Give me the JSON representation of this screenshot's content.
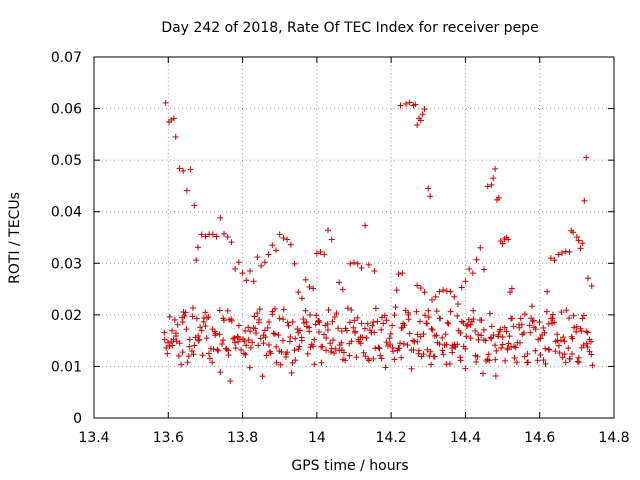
{
  "chart_data": {
    "type": "scatter",
    "title": "Day 242 of 2018, Rate Of TEC Index for receiver pepe",
    "xlabel": "GPS time / hours",
    "ylabel": "ROTI / TECUs",
    "xlim": [
      13.4,
      14.8
    ],
    "ylim": [
      0,
      0.07
    ],
    "xticks": [
      13.4,
      13.6,
      13.8,
      14.0,
      14.2,
      14.4,
      14.6,
      14.8
    ],
    "xtick_labels": [
      "13.4",
      "13.6",
      "13.8",
      "14",
      "14.2",
      "14.4",
      "14.6",
      "14.8"
    ],
    "yticks": [
      0,
      0.01,
      0.02,
      0.03,
      0.04,
      0.05,
      0.06,
      0.07
    ],
    "ytick_labels": [
      "0",
      "0.01",
      "0.02",
      "0.03",
      "0.04",
      "0.05",
      "0.06",
      "0.07"
    ],
    "grid": true,
    "marker": "+",
    "marker_color": "#cc0000",
    "series": [
      {
        "name": "ROTI",
        "points": [
          [
            13.593,
            0.0611
          ],
          [
            13.602,
            0.0574
          ],
          [
            13.608,
            0.0578
          ],
          [
            13.615,
            0.0581
          ],
          [
            13.62,
            0.0545
          ],
          [
            13.63,
            0.0484
          ],
          [
            13.64,
            0.0479
          ],
          [
            13.65,
            0.0441
          ],
          [
            13.66,
            0.0482
          ],
          [
            13.67,
            0.0412
          ],
          [
            13.675,
            0.0306
          ],
          [
            13.68,
            0.0331
          ],
          [
            13.69,
            0.0356
          ],
          [
            13.7,
            0.0352
          ],
          [
            13.71,
            0.0356
          ],
          [
            13.72,
            0.0356
          ],
          [
            13.73,
            0.0352
          ],
          [
            13.74,
            0.0388
          ],
          [
            13.75,
            0.0357
          ],
          [
            13.76,
            0.0351
          ],
          [
            13.77,
            0.0341
          ],
          [
            13.78,
            0.0289
          ],
          [
            13.79,
            0.0302
          ],
          [
            13.8,
            0.0281
          ],
          [
            13.81,
            0.0267
          ],
          [
            13.82,
            0.0285
          ],
          [
            13.83,
            0.0265
          ],
          [
            13.84,
            0.0312
          ],
          [
            13.85,
            0.0295
          ],
          [
            13.86,
            0.0302
          ],
          [
            13.87,
            0.0317
          ],
          [
            13.88,
            0.0335
          ],
          [
            13.89,
            0.0325
          ],
          [
            13.9,
            0.0356
          ],
          [
            13.91,
            0.0349
          ],
          [
            13.92,
            0.0346
          ],
          [
            13.93,
            0.0336
          ],
          [
            13.94,
            0.0299
          ],
          [
            13.95,
            0.0244
          ],
          [
            13.96,
            0.0232
          ],
          [
            13.97,
            0.0268
          ],
          [
            13.98,
            0.0254
          ],
          [
            13.99,
            0.0251
          ],
          [
            14.0,
            0.0319
          ],
          [
            14.01,
            0.0322
          ],
          [
            14.02,
            0.0317
          ],
          [
            14.03,
            0.0364
          ],
          [
            14.04,
            0.0346
          ],
          [
            14.06,
            0.0263
          ],
          [
            14.07,
            0.0249
          ],
          [
            14.09,
            0.0299
          ],
          [
            14.1,
            0.0301
          ],
          [
            14.11,
            0.0299
          ],
          [
            14.12,
            0.0291
          ],
          [
            14.13,
            0.0373
          ],
          [
            14.14,
            0.0297
          ],
          [
            14.155,
            0.0285
          ],
          [
            14.215,
            0.0248
          ],
          [
            14.22,
            0.0279
          ],
          [
            14.23,
            0.0281
          ],
          [
            14.225,
            0.0606
          ],
          [
            14.24,
            0.0609
          ],
          [
            14.25,
            0.0612
          ],
          [
            14.26,
            0.0606
          ],
          [
            14.265,
            0.0608
          ],
          [
            14.27,
            0.0568
          ],
          [
            14.275,
            0.0581
          ],
          [
            14.28,
            0.0577
          ],
          [
            14.285,
            0.0589
          ],
          [
            14.29,
            0.0599
          ],
          [
            14.3,
            0.0445
          ],
          [
            14.305,
            0.043
          ],
          [
            14.27,
            0.0257
          ],
          [
            14.28,
            0.0252
          ],
          [
            14.29,
            0.0244
          ],
          [
            14.3,
            0.0208
          ],
          [
            14.31,
            0.0229
          ],
          [
            14.32,
            0.0235
          ],
          [
            14.33,
            0.0245
          ],
          [
            14.34,
            0.0248
          ],
          [
            14.35,
            0.0246
          ],
          [
            14.36,
            0.0245
          ],
          [
            14.37,
            0.0235
          ],
          [
            14.38,
            0.0221
          ],
          [
            14.39,
            0.0253
          ],
          [
            14.4,
            0.0265
          ],
          [
            14.41,
            0.0289
          ],
          [
            14.42,
            0.0281
          ],
          [
            14.43,
            0.0307
          ],
          [
            14.44,
            0.033
          ],
          [
            14.45,
            0.0288
          ],
          [
            14.46,
            0.0449
          ],
          [
            14.47,
            0.0452
          ],
          [
            14.475,
            0.0465
          ],
          [
            14.48,
            0.0483
          ],
          [
            14.485,
            0.0423
          ],
          [
            14.49,
            0.0427
          ],
          [
            14.495,
            0.0343
          ],
          [
            14.5,
            0.0338
          ],
          [
            14.505,
            0.0347
          ],
          [
            14.51,
            0.035
          ],
          [
            14.515,
            0.0346
          ],
          [
            14.52,
            0.0244
          ],
          [
            14.525,
            0.0251
          ],
          [
            14.62,
            0.0245
          ],
          [
            14.63,
            0.031
          ],
          [
            14.64,
            0.0306
          ],
          [
            14.65,
            0.0317
          ],
          [
            14.66,
            0.032
          ],
          [
            14.67,
            0.0323
          ],
          [
            14.68,
            0.0322
          ],
          [
            14.685,
            0.0363
          ],
          [
            14.69,
            0.036
          ],
          [
            14.7,
            0.0351
          ],
          [
            14.705,
            0.0344
          ],
          [
            14.71,
            0.0329
          ],
          [
            14.715,
            0.0339
          ],
          [
            14.72,
            0.0421
          ],
          [
            14.725,
            0.0505
          ],
          [
            14.73,
            0.0271
          ],
          [
            14.74,
            0.0256
          ]
        ],
        "cluster_low": {
          "note": "dense band of many scattered points between roughly 0.006 and 0.024 across the full time range",
          "x_range": [
            13.59,
            14.745
          ],
          "y_range": [
            0.006,
            0.024
          ]
        }
      }
    ]
  }
}
